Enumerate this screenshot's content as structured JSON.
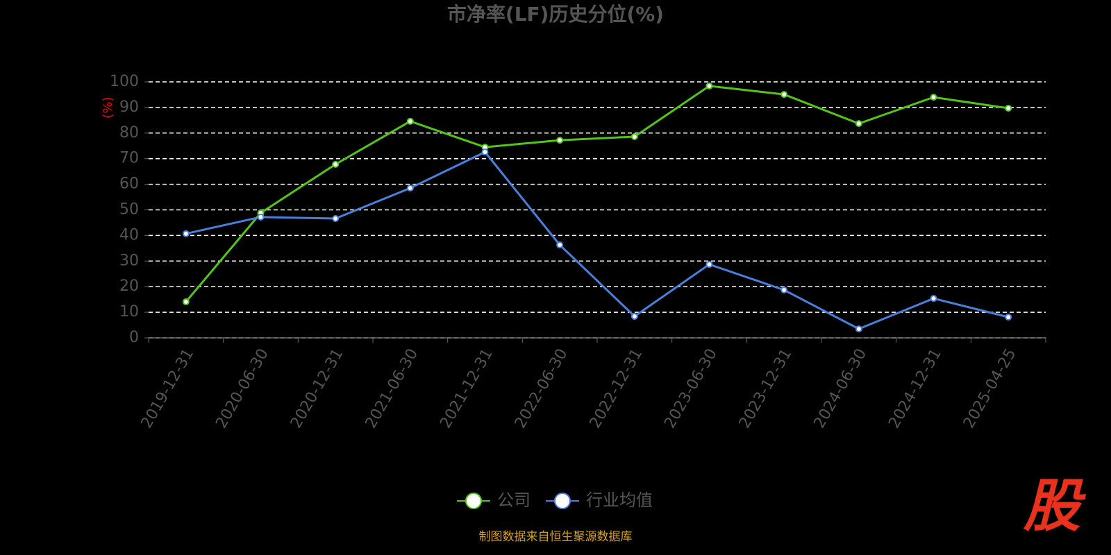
{
  "chart_data": {
    "type": "line",
    "title": "市净率(LF)历史分位(%)",
    "y_label": "(%)",
    "categories": [
      "2019-12-31",
      "2020-06-30",
      "2020-12-31",
      "2021-06-30",
      "2021-12-31",
      "2022-06-30",
      "2022-12-31",
      "2023-06-30",
      "2023-12-31",
      "2024-06-30",
      "2024-12-31",
      "2025-04-25"
    ],
    "series": [
      {
        "name": "公司",
        "color": "#52c41a",
        "values": [
          14.1,
          48.8,
          67.8,
          84.6,
          74.5,
          77.2,
          78.6,
          98.4,
          95.1,
          83.7,
          94.0,
          89.7
        ]
      },
      {
        "name": "行业均值",
        "color": "#4a7fdc",
        "values": [
          40.7,
          47.2,
          46.6,
          58.5,
          72.6,
          36.3,
          8.4,
          28.7,
          18.7,
          3.5,
          15.4,
          8.1
        ]
      }
    ],
    "ylim": [
      0,
      100
    ],
    "yticks": [
      0,
      10,
      20,
      30,
      40,
      50,
      60,
      70,
      80,
      90,
      100
    ],
    "grid": true,
    "legend": "bottom"
  },
  "footer": {
    "source": "制图数据来自恒生聚源数据库",
    "logo": "股"
  }
}
